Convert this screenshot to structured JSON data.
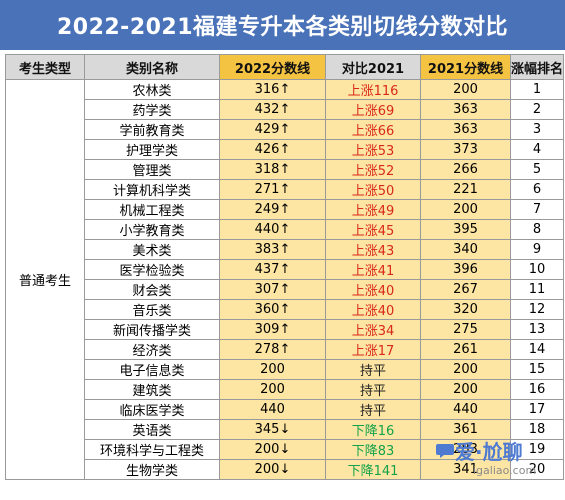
{
  "title": "2022-2021福建专升本各类别切线分数对比",
  "chart_data": {
    "type": "table",
    "columns": [
      "考生类型",
      "类别名称",
      "2022分数线",
      "对比2021",
      "2021分数线",
      "涨幅排名"
    ],
    "exam_type": "普通考生",
    "rows": [
      {
        "category": "农林类",
        "score_2022": "316↑",
        "change": "上涨116",
        "trend": "up",
        "score_2021": "200",
        "rank": "1"
      },
      {
        "category": "药学类",
        "score_2022": "432↑",
        "change": "上涨69",
        "trend": "up",
        "score_2021": "363",
        "rank": "2"
      },
      {
        "category": "学前教育类",
        "score_2022": "429↑",
        "change": "上涨66",
        "trend": "up",
        "score_2021": "363",
        "rank": "3"
      },
      {
        "category": "护理学类",
        "score_2022": "426↑",
        "change": "上涨53",
        "trend": "up",
        "score_2021": "373",
        "rank": "4"
      },
      {
        "category": "管理类",
        "score_2022": "318↑",
        "change": "上涨52",
        "trend": "up",
        "score_2021": "266",
        "rank": "5"
      },
      {
        "category": "计算机科学类",
        "score_2022": "271↑",
        "change": "上涨50",
        "trend": "up",
        "score_2021": "221",
        "rank": "6"
      },
      {
        "category": "机械工程类",
        "score_2022": "249↑",
        "change": "上涨49",
        "trend": "up",
        "score_2021": "200",
        "rank": "7"
      },
      {
        "category": "小学教育类",
        "score_2022": "440↑",
        "change": "上涨45",
        "trend": "up",
        "score_2021": "395",
        "rank": "8"
      },
      {
        "category": "美术类",
        "score_2022": "383↑",
        "change": "上涨43",
        "trend": "up",
        "score_2021": "340",
        "rank": "9"
      },
      {
        "category": "医学检验类",
        "score_2022": "437↑",
        "change": "上涨41",
        "trend": "up",
        "score_2021": "396",
        "rank": "10"
      },
      {
        "category": "财会类",
        "score_2022": "307↑",
        "change": "上涨40",
        "trend": "up",
        "score_2021": "267",
        "rank": "11"
      },
      {
        "category": "音乐类",
        "score_2022": "360↑",
        "change": "上涨40",
        "trend": "up",
        "score_2021": "320",
        "rank": "12"
      },
      {
        "category": "新闻传播学类",
        "score_2022": "309↑",
        "change": "上涨34",
        "trend": "up",
        "score_2021": "275",
        "rank": "13"
      },
      {
        "category": "经济类",
        "score_2022": "278↑",
        "change": "上涨17",
        "trend": "up",
        "score_2021": "261",
        "rank": "14"
      },
      {
        "category": "电子信息类",
        "score_2022": "200",
        "change": "持平",
        "trend": "flat",
        "score_2021": "200",
        "rank": "15"
      },
      {
        "category": "建筑类",
        "score_2022": "200",
        "change": "持平",
        "trend": "flat",
        "score_2021": "200",
        "rank": "16"
      },
      {
        "category": "临床医学类",
        "score_2022": "440",
        "change": "持平",
        "trend": "flat",
        "score_2021": "440",
        "rank": "17"
      },
      {
        "category": "英语类",
        "score_2022": "345↓",
        "change": "下降16",
        "trend": "down",
        "score_2021": "361",
        "rank": "18"
      },
      {
        "category": "环境科学与工程类",
        "score_2022": "200↓",
        "change": "下降83",
        "trend": "down",
        "score_2021": "283",
        "rank": "19"
      },
      {
        "category": "生物学类",
        "score_2022": "200↓",
        "change": "下降141",
        "trend": "down",
        "score_2021": "341",
        "rank": "20"
      }
    ]
  },
  "watermark": {
    "title": "爱·尬聊",
    "url": "igaliao.com"
  }
}
